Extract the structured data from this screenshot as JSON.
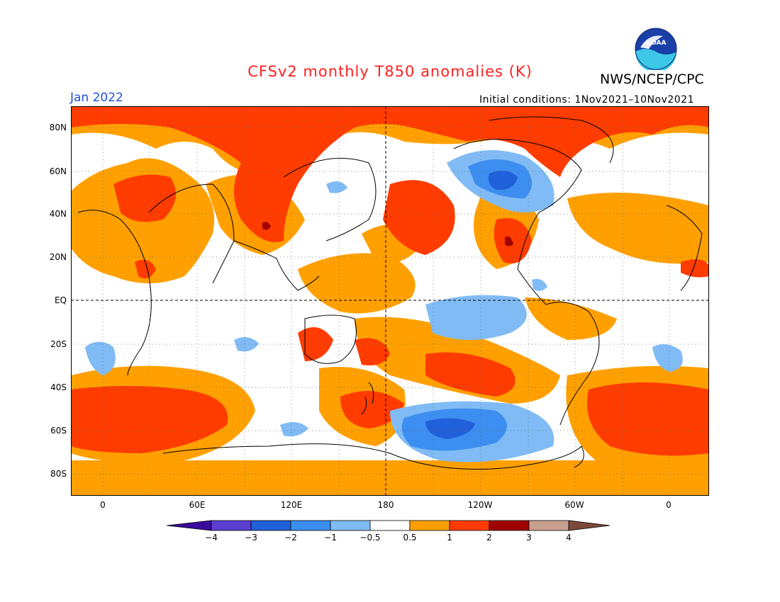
{
  "title": "CFSv2 monthly T850 anomalies (K)",
  "agency": "NWS/NCEP/CPC",
  "valid_month": "Jan 2022",
  "initial_conditions": "Initial conditions: 1Nov2021–10Nov2021",
  "logo": {
    "icon": "noaa-logo",
    "text": "NOAA"
  },
  "lat_labels": [
    "80N",
    "60N",
    "40N",
    "20N",
    "EQ",
    "20S",
    "40S",
    "60S",
    "80S"
  ],
  "lon_labels": [
    "0",
    "60E",
    "120E",
    "180",
    "120W",
    "60W",
    "0"
  ],
  "colorbar": {
    "labels": [
      "−4",
      "−3",
      "−2",
      "−1",
      "−0.5",
      "0.5",
      "1",
      "2",
      "3",
      "4"
    ],
    "colors": [
      "#3a0a9a",
      "#5a3fd0",
      "#2060d8",
      "#3c8ef0",
      "#80bbf5",
      "#ffffff",
      "#ffa000",
      "#ff3c00",
      "#a00000",
      "#c8a090",
      "#7a4a3a"
    ]
  },
  "palette": {
    "warm1": "#ffa000",
    "warm2": "#ff3c00",
    "warm3": "#a00000",
    "cool1": "#80bbf5",
    "cool2": "#3c8ef0",
    "cool3": "#2060d8",
    "title_color": "#ff2020",
    "month_color": "#1f4fd6"
  }
}
